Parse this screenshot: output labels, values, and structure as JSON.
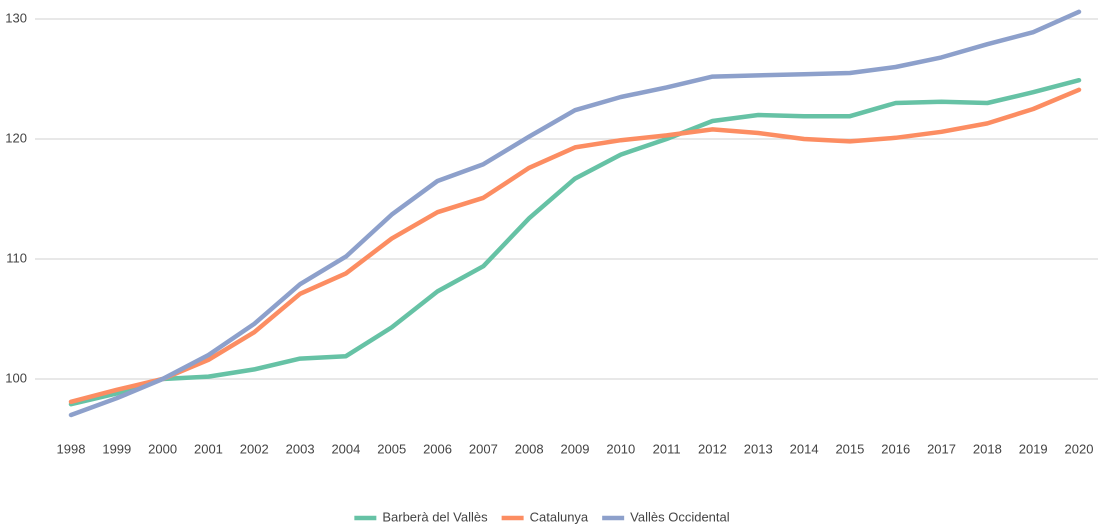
{
  "chart_data": {
    "type": "line",
    "categories": [
      "1998",
      "1999",
      "2000",
      "2001",
      "2002",
      "2003",
      "2004",
      "2005",
      "2006",
      "2007",
      "2008",
      "2009",
      "2010",
      "2011",
      "2012",
      "2013",
      "2014",
      "2015",
      "2016",
      "2017",
      "2018",
      "2019",
      "2020"
    ],
    "series": [
      {
        "name": "Barberà del Vallès",
        "color": "#66c2a5",
        "values": [
          97.9,
          98.8,
          100,
          100.2,
          100.8,
          101.7,
          101.9,
          104.3,
          107.3,
          109.4,
          113.4,
          116.7,
          118.7,
          120.0,
          121.5,
          122.0,
          121.9,
          121.9,
          123.0,
          123.1,
          123.0,
          123.9,
          124.9
        ]
      },
      {
        "name": "Catalunya",
        "color": "#fc8d62",
        "values": [
          98.1,
          99.1,
          100,
          101.6,
          103.9,
          107.1,
          108.8,
          111.7,
          113.9,
          115.1,
          117.6,
          119.3,
          119.9,
          120.3,
          120.8,
          120.5,
          120.0,
          119.8,
          120.1,
          120.6,
          121.3,
          122.5,
          124.1
        ]
      },
      {
        "name": "Vallès Occidental",
        "color": "#8da0cb",
        "values": [
          97.0,
          98.4,
          100,
          102.0,
          104.6,
          107.9,
          110.2,
          113.7,
          116.5,
          117.9,
          120.2,
          122.4,
          123.5,
          124.3,
          125.2,
          125.3,
          125.4,
          125.5,
          126.0,
          126.8,
          127.9,
          128.9,
          130.6
        ]
      }
    ],
    "ylim": [
      96.5,
      131.5
    ],
    "yticks": [
      100,
      110,
      120,
      130
    ],
    "grid": true,
    "legend": "bottom"
  }
}
